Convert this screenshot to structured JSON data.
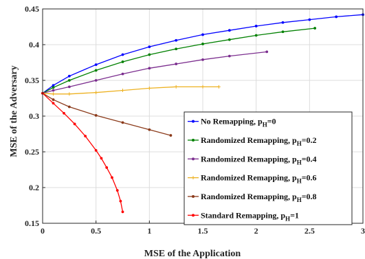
{
  "chart_data": {
    "type": "line",
    "title": "",
    "xlabel": "MSE of the Application",
    "ylabel": "MSE of the Adversary",
    "xlim": [
      0,
      3
    ],
    "ylim": [
      0.15,
      0.45
    ],
    "xticks": [
      "0",
      "0.5",
      "1",
      "1.5",
      "2",
      "2.5",
      "3"
    ],
    "yticks": [
      "0.15",
      "0.2",
      "0.25",
      "0.3",
      "0.35",
      "0.4",
      "0.45"
    ],
    "grid": true,
    "legend_position": "lower-right",
    "series": [
      {
        "name": "No Remapping, p",
        "subscript": "H",
        "suffix": "=0",
        "color": "#0000ff",
        "marker": "dot",
        "x": [
          0,
          0.1,
          0.25,
          0.5,
          0.75,
          1.0,
          1.25,
          1.5,
          1.75,
          2.0,
          2.25,
          2.5,
          2.75,
          3.0
        ],
        "y": [
          0.332,
          0.343,
          0.356,
          0.372,
          0.386,
          0.397,
          0.406,
          0.414,
          0.42,
          0.426,
          0.431,
          0.435,
          0.439,
          0.442
        ]
      },
      {
        "name": "Randomized  Remapping, p",
        "subscript": "H",
        "suffix": "=0.2",
        "color": "#008000",
        "marker": "dot",
        "x": [
          0,
          0.1,
          0.25,
          0.5,
          0.75,
          1.0,
          1.25,
          1.5,
          1.75,
          2.0,
          2.25,
          2.55
        ],
        "y": [
          0.332,
          0.34,
          0.35,
          0.364,
          0.376,
          0.386,
          0.394,
          0.401,
          0.407,
          0.413,
          0.418,
          0.423
        ]
      },
      {
        "name": "Randomized  Remapping, p",
        "subscript": "H",
        "suffix": "=0.4",
        "color": "#7b2d8e",
        "marker": "dot",
        "x": [
          0,
          0.1,
          0.25,
          0.5,
          0.75,
          1.0,
          1.25,
          1.5,
          1.75,
          2.1
        ],
        "y": [
          0.332,
          0.336,
          0.341,
          0.35,
          0.359,
          0.367,
          0.373,
          0.379,
          0.384,
          0.39
        ]
      },
      {
        "name": "Randomized  Remapping, p",
        "subscript": "H",
        "suffix": "=0.6",
        "color": "#edb120",
        "marker": "plus",
        "x": [
          0,
          0.1,
          0.25,
          0.5,
          0.75,
          1.0,
          1.25,
          1.5,
          1.65
        ],
        "y": [
          0.332,
          0.331,
          0.331,
          0.333,
          0.336,
          0.339,
          0.341,
          0.341,
          0.341
        ]
      },
      {
        "name": "Randomized  Remapping, p",
        "subscript": "H",
        "suffix": "=0.8",
        "color": "#8b3a1a",
        "marker": "dot",
        "x": [
          0,
          0.1,
          0.25,
          0.5,
          0.75,
          1.0,
          1.2
        ],
        "y": [
          0.332,
          0.323,
          0.313,
          0.301,
          0.291,
          0.281,
          0.273
        ]
      },
      {
        "name": "Standard  Remapping, p",
        "subscript": "H",
        "suffix": "=1",
        "color": "#ff0000",
        "marker": "dot",
        "x": [
          0,
          0.1,
          0.2,
          0.3,
          0.4,
          0.5,
          0.55,
          0.6,
          0.65,
          0.7,
          0.73,
          0.75
        ],
        "y": [
          0.332,
          0.318,
          0.304,
          0.289,
          0.272,
          0.252,
          0.241,
          0.228,
          0.214,
          0.196,
          0.181,
          0.166
        ]
      }
    ]
  }
}
